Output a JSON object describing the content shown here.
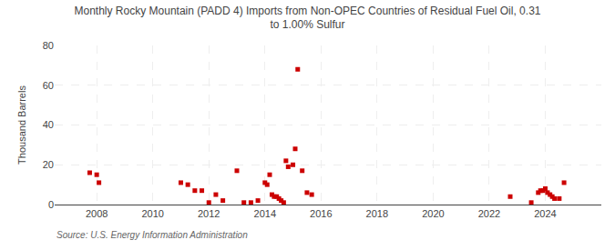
{
  "chart_data": {
    "type": "scatter",
    "title": "Monthly Rocky Mountain (PADD 4) Imports from Non-OPEC Countries of Residual Fuel Oil, 0.31\nto 1.00% Sulfur",
    "ylabel": "Thousand Barrels",
    "annotations": [
      {
        "text": "Source: U.S. Energy Information Administration"
      }
    ],
    "color": "#cc0000",
    "marker": "square",
    "grid": true,
    "xlim": [
      2006.5,
      2026.0
    ],
    "ylim": [
      0,
      80
    ],
    "xticks": [
      2008,
      2010,
      2012,
      2014,
      2016,
      2018,
      2020,
      2022,
      2024
    ],
    "yticks": [
      0,
      20,
      40,
      60,
      80
    ],
    "x": [
      2007.75,
      2008.0,
      2008.08,
      2011.0,
      2011.25,
      2011.5,
      2011.75,
      2012.0,
      2012.25,
      2012.5,
      2013.0,
      2013.25,
      2013.5,
      2013.75,
      2014.0,
      2014.08,
      2014.17,
      2014.25,
      2014.33,
      2014.42,
      2014.5,
      2014.58,
      2014.67,
      2014.75,
      2014.83,
      2015.0,
      2015.08,
      2015.17,
      2015.33,
      2015.5,
      2015.67,
      2022.75,
      2023.5,
      2023.75,
      2023.83,
      2023.92,
      2024.0,
      2024.08,
      2024.17,
      2024.25,
      2024.33,
      2024.5,
      2024.67
    ],
    "values": [
      16,
      15,
      11,
      11,
      10,
      7,
      7,
      1,
      5,
      2,
      17,
      1,
      1,
      2,
      11,
      10,
      15,
      5,
      4,
      4,
      3,
      2,
      1,
      22,
      19,
      20,
      28,
      68,
      17,
      6,
      5,
      4,
      1,
      6,
      7,
      7,
      8,
      6,
      5,
      4,
      3,
      3,
      11
    ]
  }
}
